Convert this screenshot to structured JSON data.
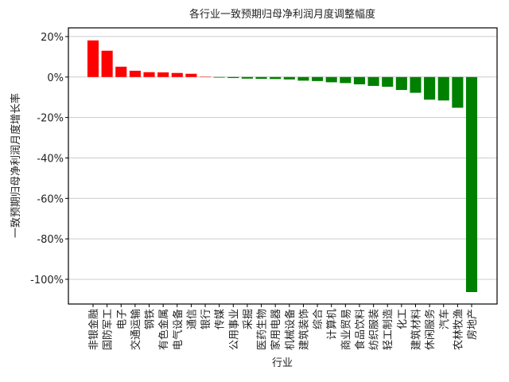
{
  "chart_data": {
    "type": "bar",
    "title": "各行业一致预期归母净利润月度调整幅度",
    "xlabel": "行业",
    "ylabel": "一致预期归母净利润月度增长率",
    "categories": [
      "非银金融",
      "国防军工",
      "电子",
      "交通运输",
      "钢铁",
      "有色金属",
      "电气设备",
      "通信",
      "银行",
      "传媒",
      "公用事业",
      "采掘",
      "医药生物",
      "家用电器",
      "机械设备",
      "建筑装饰",
      "综合",
      "计算机",
      "商业贸易",
      "食品饮料",
      "纺织服装",
      "轻工制造",
      "化工",
      "建筑材料",
      "休闲服务",
      "汽车",
      "农林牧渔",
      "房地产"
    ],
    "values": [
      18.1,
      13,
      5.1,
      3.1,
      2.4,
      2.3,
      2,
      1.6,
      0.1,
      -0.3,
      -0.5,
      -0.8,
      -0.9,
      -1,
      -1.2,
      -1.8,
      -2,
      -2.6,
      -3,
      -3.6,
      -4.4,
      -4.8,
      -6.4,
      -7.8,
      -11.2,
      -11.6,
      -15.2,
      -106.3
    ],
    "positive_color": "#ff0000",
    "negative_color": "#008000",
    "ylim": [
      -112.2,
      24.3
    ],
    "yticks": [
      {
        "value": 20,
        "label": "20%"
      },
      {
        "value": 0,
        "label": "0%"
      },
      {
        "value": -20,
        "label": "-20%"
      },
      {
        "value": -40,
        "label": "-40%"
      },
      {
        "value": -60,
        "label": "-60%"
      },
      {
        "value": -80,
        "label": "-80%"
      },
      {
        "value": -100,
        "label": "-100%"
      }
    ],
    "grid": true
  }
}
